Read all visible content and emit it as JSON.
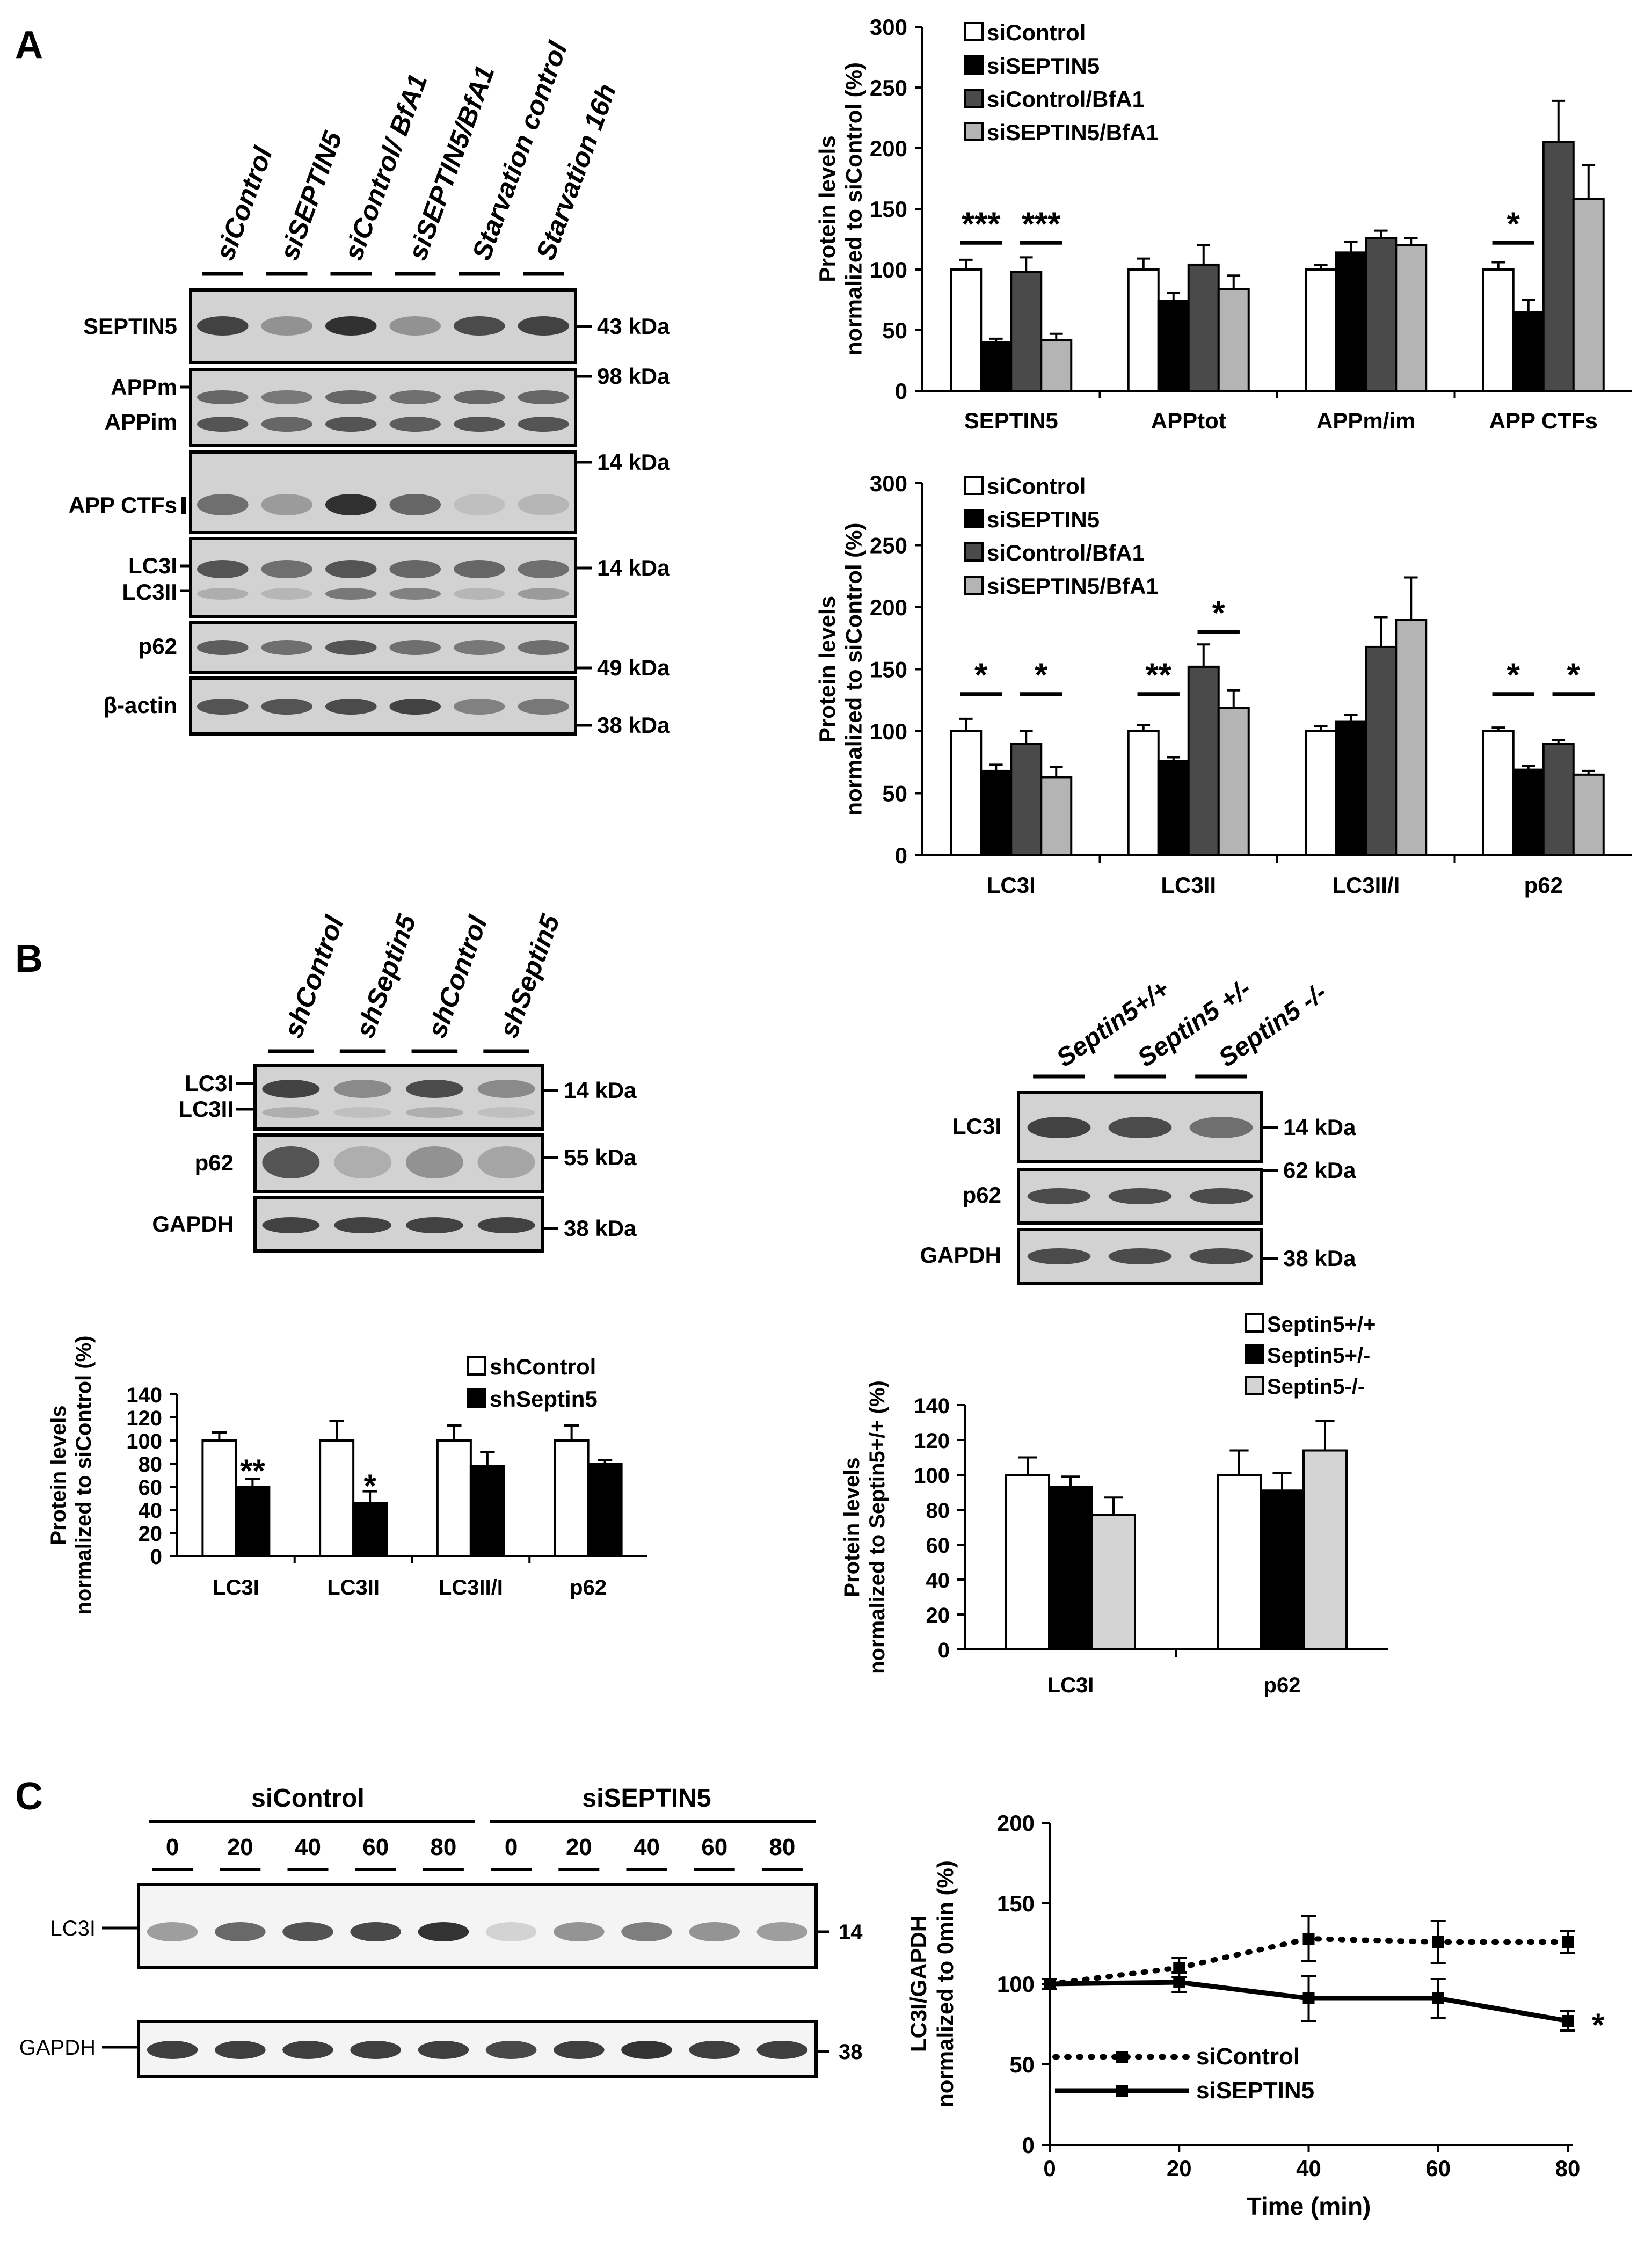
{
  "panels": {
    "a": "A",
    "b": "B",
    "c": "C"
  },
  "colors": {
    "white": "#ffffff",
    "black": "#000000",
    "dark": "#4a4a4a",
    "light": "#b4b4b4",
    "septin_light": "#d4d4d4",
    "blot_bg": "#d2d2d2",
    "band": "#1e1e1e"
  },
  "blot_a": {
    "lanes": [
      "siControl",
      "siSEPTIN5",
      "siControl/ BfA1",
      "siSEPTIN5/BfA1",
      "Starvation control",
      "Starvation 16h"
    ],
    "strips": [
      {
        "label": "SEPTIN5",
        "kda": "43 kDa",
        "bands": [
          0.8,
          0.35,
          0.9,
          0.35,
          0.75,
          0.8
        ]
      },
      {
        "label": "APPm",
        "kda": "98 kDa",
        "bands": [
          0.6,
          0.5,
          0.6,
          0.55,
          0.6,
          0.6
        ]
      },
      {
        "label": "APPim",
        "kda": "",
        "bands": [
          0.7,
          0.6,
          0.7,
          0.65,
          0.7,
          0.7
        ]
      },
      {
        "label": "APP CTFs",
        "kda": "14 kDa",
        "bands": [
          0.55,
          0.3,
          0.9,
          0.6,
          0.1,
          0.15
        ]
      },
      {
        "label": "LC3I",
        "kda": "14 kDa",
        "bands": [
          0.7,
          0.55,
          0.7,
          0.6,
          0.6,
          0.55
        ]
      },
      {
        "label": "LC3II",
        "kda": "",
        "bands": [
          0.2,
          0.15,
          0.5,
          0.45,
          0.15,
          0.3
        ]
      },
      {
        "label": "p62",
        "kda": "49 kDa",
        "bands": [
          0.65,
          0.55,
          0.7,
          0.55,
          0.5,
          0.55
        ]
      },
      {
        "label": "β-actin",
        "kda": "38 kDa",
        "bands": [
          0.7,
          0.7,
          0.75,
          0.8,
          0.45,
          0.5
        ]
      }
    ]
  },
  "blot_b1": {
    "lanes": [
      "shControl",
      "shSeptin5",
      "shControl",
      "shSeptin5"
    ],
    "strips": [
      {
        "label": "LC3I",
        "kda": "14 kDa",
        "bands": [
          0.8,
          0.4,
          0.75,
          0.4
        ]
      },
      {
        "label": "LC3II",
        "kda": "",
        "bands": [
          0.2,
          0.1,
          0.2,
          0.1
        ]
      },
      {
        "label": "p62",
        "kda": "55 kDa",
        "bands": [
          0.7,
          0.2,
          0.35,
          0.25
        ]
      },
      {
        "label": "GAPDH",
        "kda": "38 kDa",
        "bands": [
          0.8,
          0.8,
          0.8,
          0.8
        ]
      }
    ]
  },
  "blot_b2": {
    "lanes": [
      "Septin5+/+",
      "Septin5 +/-",
      "Septin5 -/-"
    ],
    "strips": [
      {
        "label": "LC3I",
        "kda": "14 kDa",
        "bands": [
          0.8,
          0.75,
          0.55
        ]
      },
      {
        "label": "p62",
        "kda": "62 kDa",
        "bands": [
          0.75,
          0.75,
          0.75
        ]
      },
      {
        "label": "GAPDH",
        "kda": "38 kDa",
        "bands": [
          0.75,
          0.75,
          0.75
        ]
      }
    ]
  },
  "blot_c": {
    "group1": "siControl",
    "group2": "siSEPTIN5",
    "times": [
      "0",
      "20",
      "40",
      "60",
      "80",
      "0",
      "20",
      "40",
      "60",
      "80"
    ],
    "strips": [
      {
        "label": "LC3I",
        "kda": "14",
        "bands": [
          0.4,
          0.65,
          0.75,
          0.8,
          0.9,
          0.15,
          0.45,
          0.55,
          0.45,
          0.4
        ]
      },
      {
        "label": "GAPDH",
        "kda": "38",
        "bands": [
          0.85,
          0.85,
          0.85,
          0.85,
          0.85,
          0.8,
          0.85,
          0.9,
          0.85,
          0.85
        ]
      }
    ]
  },
  "chart_data": [
    {
      "type": "bar",
      "id": "a_top",
      "ylabel": "Protein levels normalized to siControl (%)",
      "ylabel_lines": [
        "Protein levels",
        "normalized to siControl (%)"
      ],
      "ylim": [
        0,
        300
      ],
      "yticks": [
        0,
        50,
        100,
        150,
        200,
        250,
        300
      ],
      "categories": [
        "SEPTIN5",
        "APPtot",
        "APPm/im",
        "APP CTFs"
      ],
      "series": [
        {
          "name": "siControl",
          "color": "#ffffff",
          "values": [
            100,
            100,
            100,
            100
          ],
          "errors": [
            8,
            9,
            4,
            6
          ]
        },
        {
          "name": "siSEPTIN5",
          "color": "#000000",
          "values": [
            40,
            74,
            114,
            65
          ],
          "errors": [
            3,
            7,
            9,
            10
          ]
        },
        {
          "name": "siControl/BfA1",
          "color": "#4a4a4a",
          "values": [
            98,
            104,
            126,
            205
          ],
          "errors": [
            12,
            16,
            6,
            34
          ]
        },
        {
          "name": "siSEPTIN5/BfA1",
          "color": "#b4b4b4",
          "values": [
            42,
            84,
            120,
            158
          ],
          "errors": [
            5,
            11,
            6,
            28
          ]
        }
      ],
      "significance": [
        {
          "text": "***",
          "cat": 0,
          "s1": 0,
          "s2": 1,
          "y": 122
        },
        {
          "text": "***",
          "cat": 0,
          "s1": 2,
          "s2": 3,
          "y": 122
        },
        {
          "text": "*",
          "cat": 3,
          "s1": 0,
          "s2": 1,
          "y": 122
        }
      ]
    },
    {
      "type": "bar",
      "id": "a_bottom",
      "ylabel": "Protein levels normalized to siControl (%)",
      "ylabel_lines": [
        "Protein levels",
        "normalized to siControl (%)"
      ],
      "ylim": [
        0,
        300
      ],
      "yticks": [
        0,
        50,
        100,
        150,
        200,
        250,
        300
      ],
      "categories": [
        "LC3I",
        "LC3II",
        "LC3II/I",
        "p62"
      ],
      "series": [
        {
          "name": "siControl",
          "color": "#ffffff",
          "values": [
            100,
            100,
            100,
            100
          ],
          "errors": [
            10,
            5,
            4,
            3
          ]
        },
        {
          "name": "siSEPTIN5",
          "color": "#000000",
          "values": [
            68,
            76,
            108,
            69
          ],
          "errors": [
            5,
            3,
            5,
            3
          ]
        },
        {
          "name": "siControl/BfA1",
          "color": "#4a4a4a",
          "values": [
            90,
            152,
            168,
            90
          ],
          "errors": [
            10,
            18,
            24,
            3
          ]
        },
        {
          "name": "siSEPTIN5/BfA1",
          "color": "#b4b4b4",
          "values": [
            63,
            119,
            190,
            65
          ],
          "errors": [
            8,
            14,
            34,
            3
          ]
        }
      ],
      "significance": [
        {
          "text": "*",
          "cat": 0,
          "s1": 0,
          "s2": 1,
          "y": 130
        },
        {
          "text": "*",
          "cat": 0,
          "s1": 2,
          "s2": 3,
          "y": 130
        },
        {
          "text": "**",
          "cat": 1,
          "s1": 0,
          "s2": 1,
          "y": 130
        },
        {
          "text": "*",
          "cat": 1,
          "s1": 2,
          "s2": 3,
          "y": 180
        },
        {
          "text": "*",
          "cat": 3,
          "s1": 0,
          "s2": 1,
          "y": 130
        },
        {
          "text": "*",
          "cat": 3,
          "s1": 2,
          "s2": 3,
          "y": 130
        }
      ]
    },
    {
      "type": "bar",
      "id": "b_left",
      "ylabel": "Protein levels normalized to siControl (%)",
      "ylabel_lines": [
        "Protein levels",
        "normalized to siControl (%)"
      ],
      "ylim": [
        0,
        140
      ],
      "yticks": [
        0,
        20,
        40,
        60,
        80,
        100,
        120,
        140
      ],
      "categories": [
        "LC3I",
        "LC3II",
        "LC3II/I",
        "p62"
      ],
      "series": [
        {
          "name": "shControl",
          "color": "#ffffff",
          "values": [
            100,
            100,
            100,
            100
          ],
          "errors": [
            7,
            17,
            13,
            13
          ]
        },
        {
          "name": "shSeptin5",
          "color": "#000000",
          "values": [
            60,
            46,
            78,
            80
          ],
          "errors": [
            7,
            10,
            12,
            3
          ]
        }
      ],
      "significance": [
        {
          "text": "**",
          "cat": 0,
          "s1": 1,
          "s2": 1,
          "y": 74
        },
        {
          "text": "*",
          "cat": 1,
          "s1": 1,
          "s2": 1,
          "y": 61
        }
      ]
    },
    {
      "type": "bar",
      "id": "b_right",
      "ylabel": "Protein levels normalized to Septin5+/+ (%)",
      "ylabel_lines": [
        "Protein levels",
        "normalized to Septin5+/+ (%)"
      ],
      "ylim": [
        0,
        140
      ],
      "yticks": [
        0,
        20,
        40,
        60,
        80,
        100,
        120,
        140
      ],
      "categories": [
        "LC3I",
        "p62"
      ],
      "series": [
        {
          "name": "Septin5+/+",
          "color": "#ffffff",
          "values": [
            100,
            100
          ],
          "errors": [
            10,
            14
          ]
        },
        {
          "name": "Septin5+/-",
          "color": "#000000",
          "values": [
            93,
            91
          ],
          "errors": [
            6,
            10
          ]
        },
        {
          "name": "Septin5-/-",
          "color": "#d4d4d4",
          "values": [
            77,
            114
          ],
          "errors": [
            10,
            17
          ]
        }
      ],
      "significance": []
    },
    {
      "type": "line",
      "id": "c_line",
      "xlabel": "Time (min)",
      "ylabel": "LC3I/GAPDH normalized to 0min (%)",
      "ylabel_lines": [
        "LC3I/GAPDH",
        "normalized to 0min (%)"
      ],
      "xlim": [
        0,
        80
      ],
      "xticks": [
        0,
        20,
        40,
        60,
        80
      ],
      "ylim": [
        0,
        200
      ],
      "yticks": [
        0,
        50,
        100,
        150,
        200
      ],
      "series": [
        {
          "name": "siControl",
          "style": "dotted",
          "x": [
            0,
            20,
            40,
            60,
            80
          ],
          "y": [
            100,
            110,
            128,
            126,
            126
          ],
          "errors": [
            3,
            6,
            14,
            13,
            7
          ]
        },
        {
          "name": "siSEPTIN5",
          "style": "solid",
          "x": [
            0,
            20,
            40,
            60,
            80
          ],
          "y": [
            100,
            101,
            91,
            91,
            77
          ],
          "errors": [
            3,
            6,
            14,
            12,
            6
          ]
        }
      ],
      "significance": [
        {
          "text": "*",
          "x": 80,
          "y": 77
        }
      ]
    }
  ]
}
